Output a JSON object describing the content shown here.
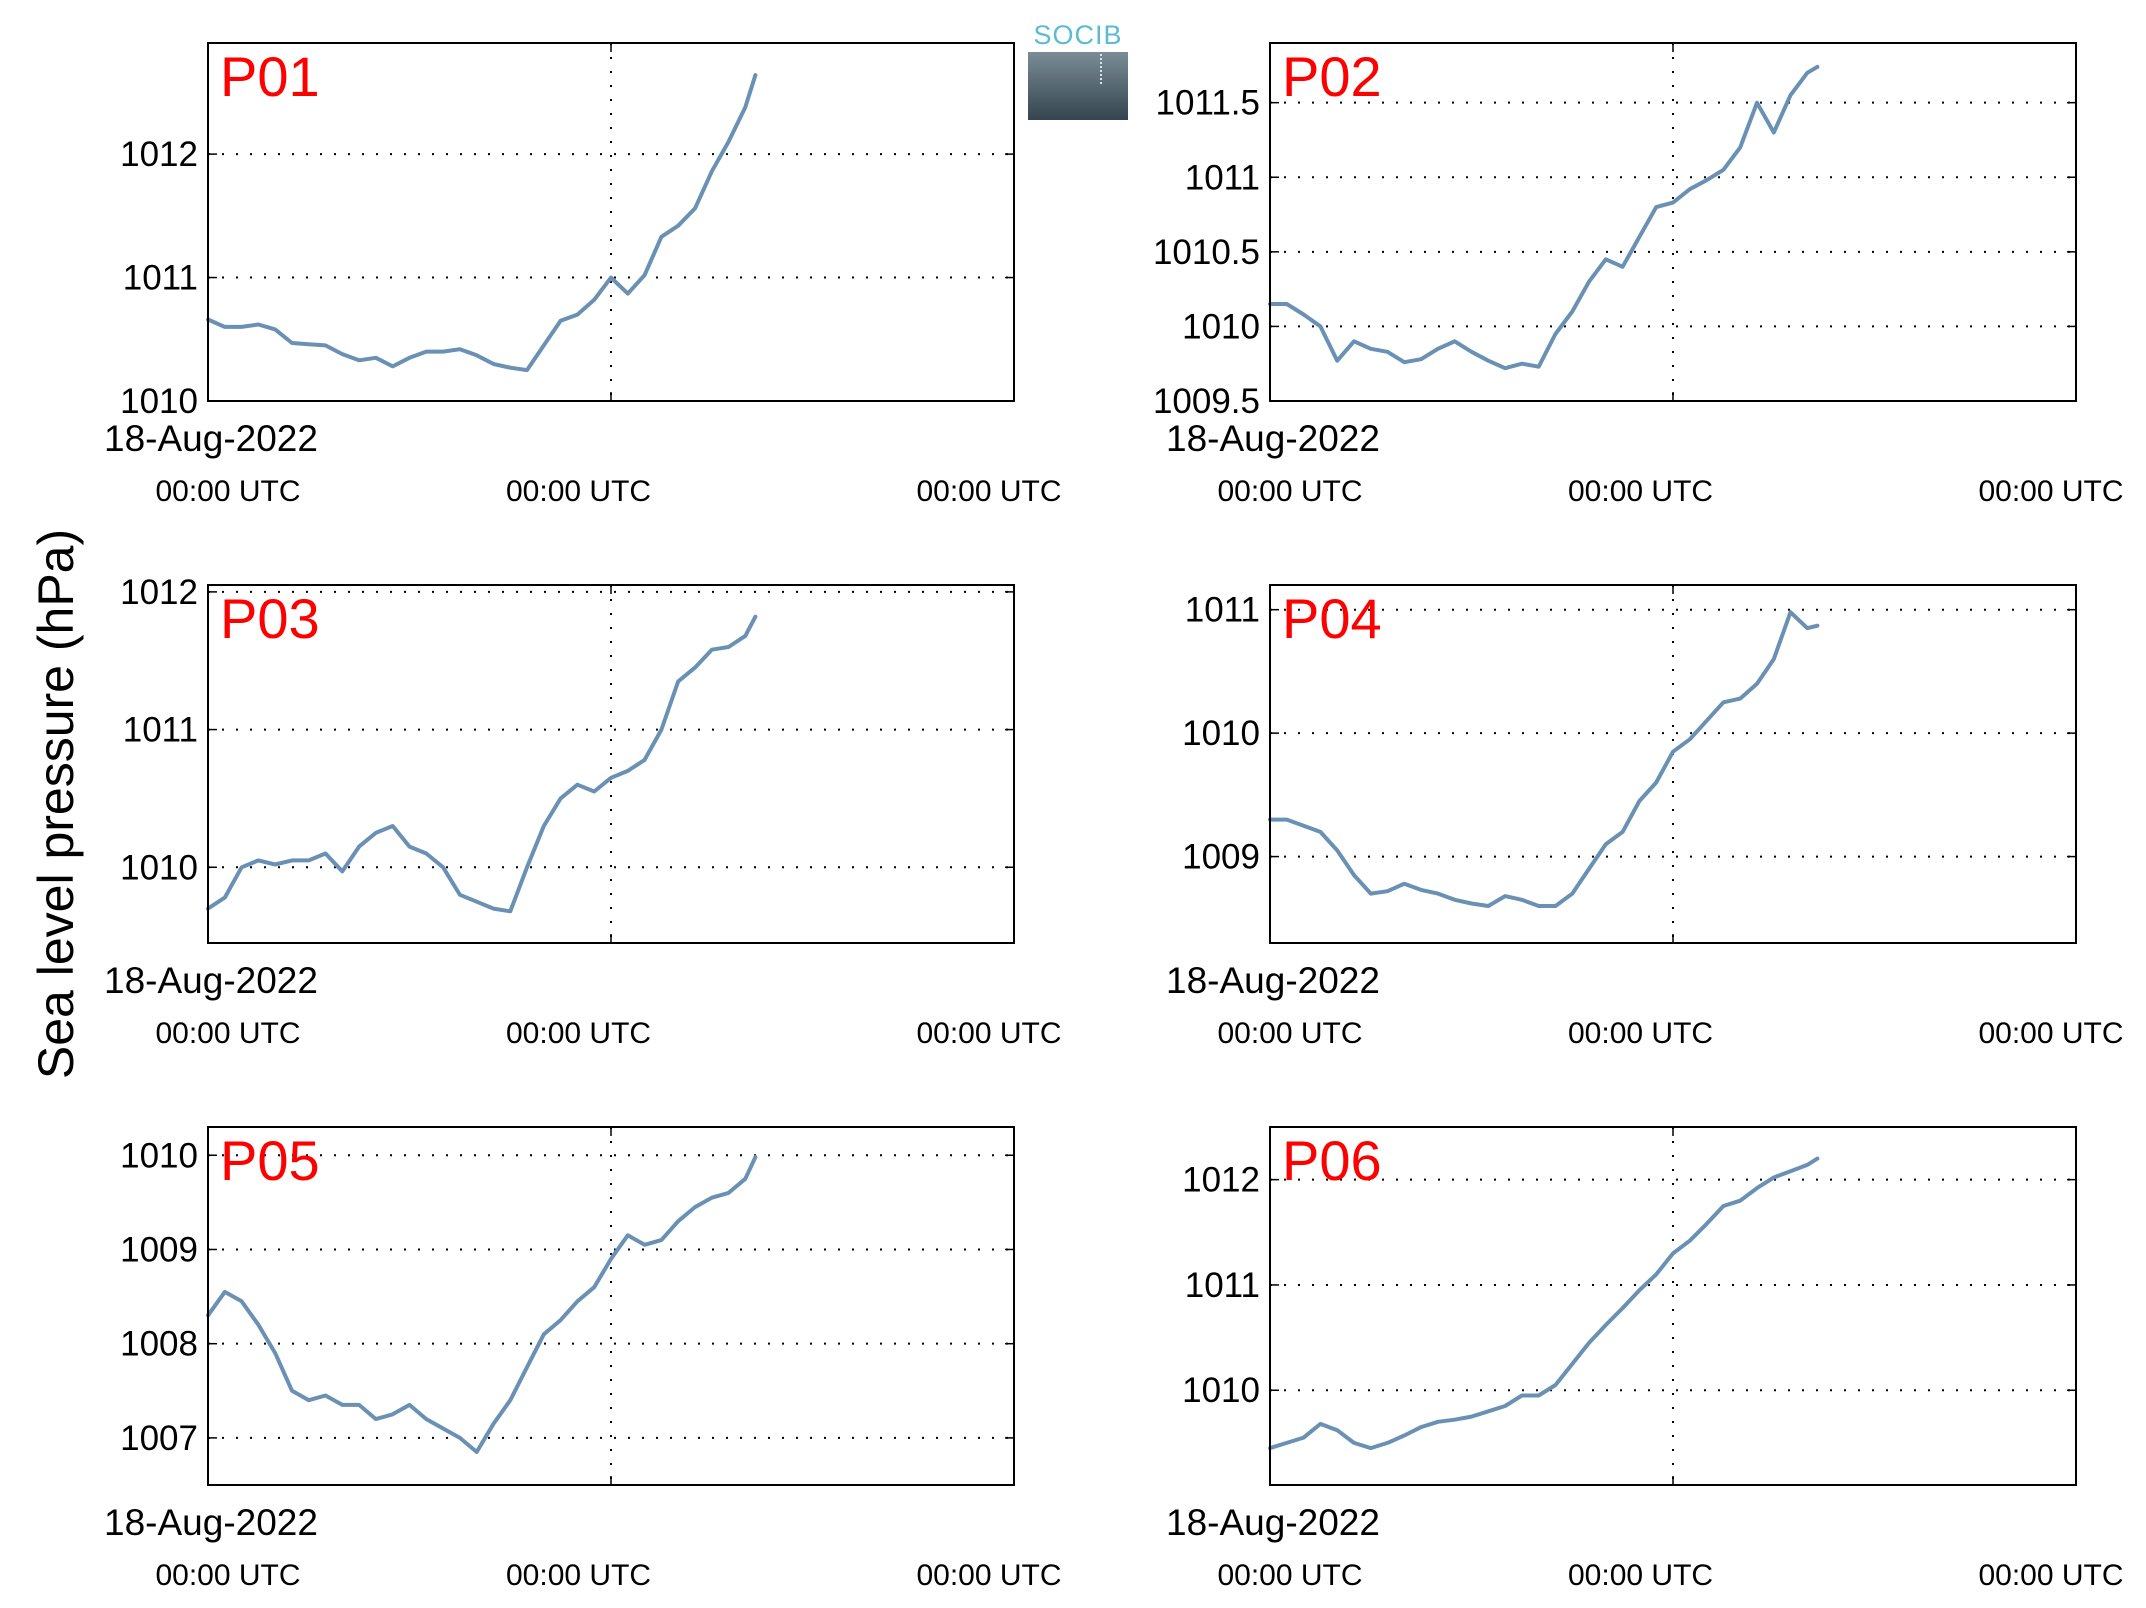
{
  "figure": {
    "ylabel": "Sea level pressure (hPa)",
    "logo_text": "SOCIB",
    "date_label": "18-Aug-2022",
    "xtick_labels": [
      "00:00 UTC",
      "00:00 UTC",
      "00:00 UTC"
    ],
    "line_color": "#6a91b3",
    "panel_label_color": "#ff0000"
  },
  "chart_data": [
    {
      "type": "line",
      "panel_label": "P01",
      "ylim": [
        1010,
        1012.9
      ],
      "yticks": [
        1010,
        1011,
        1012
      ],
      "ytick_labels": [
        "1010",
        "1011",
        "1012"
      ],
      "xlim": [
        0,
        48
      ],
      "grid": true,
      "x": [
        0,
        1,
        2,
        3,
        4,
        5,
        6,
        7,
        8,
        9,
        10,
        11,
        12,
        13,
        14,
        15,
        16,
        17,
        18,
        19,
        20,
        21,
        22,
        23,
        24,
        25,
        26,
        27,
        28,
        29,
        30,
        31,
        32,
        32.6
      ],
      "values": [
        1010.66,
        1010.6,
        1010.6,
        1010.62,
        1010.58,
        1010.47,
        1010.46,
        1010.45,
        1010.38,
        1010.33,
        1010.35,
        1010.28,
        1010.35,
        1010.4,
        1010.4,
        1010.42,
        1010.37,
        1010.3,
        1010.27,
        1010.25,
        1010.45,
        1010.65,
        1010.7,
        1010.82,
        1011.0,
        1010.87,
        1011.02,
        1011.33,
        1011.42,
        1011.56,
        1011.86,
        1012.1,
        1012.38,
        1012.64
      ]
    },
    {
      "type": "line",
      "panel_label": "P02",
      "ylim": [
        1009.5,
        1011.9
      ],
      "yticks": [
        1009.5,
        1010,
        1010.5,
        1011,
        1011.5
      ],
      "ytick_labels": [
        "1009.5",
        "1010",
        "1010.5",
        "1011",
        "1011.5"
      ],
      "xlim": [
        0,
        48
      ],
      "grid": true,
      "x": [
        0,
        1,
        2,
        3,
        4,
        5,
        6,
        7,
        8,
        9,
        10,
        11,
        12,
        13,
        14,
        15,
        16,
        17,
        18,
        19,
        20,
        21,
        22,
        23,
        24,
        25,
        26,
        27,
        28,
        29,
        30,
        31,
        32,
        32.6
      ],
      "values": [
        1010.15,
        1010.15,
        1010.08,
        1010.0,
        1009.77,
        1009.9,
        1009.85,
        1009.83,
        1009.76,
        1009.78,
        1009.85,
        1009.9,
        1009.83,
        1009.77,
        1009.72,
        1009.75,
        1009.73,
        1009.95,
        1010.1,
        1010.3,
        1010.45,
        1010.4,
        1010.6,
        1010.8,
        1010.83,
        1010.92,
        1010.98,
        1011.05,
        1011.2,
        1011.5,
        1011.3,
        1011.55,
        1011.7,
        1011.74
      ]
    },
    {
      "type": "line",
      "panel_label": "P03",
      "ylim": [
        1009.45,
        1012.05
      ],
      "yticks": [
        1010,
        1011,
        1012
      ],
      "ytick_labels": [
        "1010",
        "1011",
        "1012"
      ],
      "xlim": [
        0,
        48
      ],
      "grid": true,
      "x": [
        0,
        1,
        2,
        3,
        4,
        5,
        6,
        7,
        8,
        9,
        10,
        11,
        12,
        13,
        14,
        15,
        16,
        17,
        18,
        19,
        20,
        21,
        22,
        23,
        24,
        25,
        26,
        27,
        28,
        29,
        30,
        31,
        32,
        32.6
      ],
      "values": [
        1009.7,
        1009.78,
        1010.0,
        1010.05,
        1010.02,
        1010.05,
        1010.05,
        1010.1,
        1009.97,
        1010.15,
        1010.25,
        1010.3,
        1010.15,
        1010.1,
        1010.0,
        1009.8,
        1009.75,
        1009.7,
        1009.68,
        1010.0,
        1010.3,
        1010.5,
        1010.6,
        1010.55,
        1010.65,
        1010.7,
        1010.78,
        1011.0,
        1011.35,
        1011.45,
        1011.58,
        1011.6,
        1011.68,
        1011.82
      ]
    },
    {
      "type": "line",
      "panel_label": "P04",
      "ylim": [
        1008.3,
        1011.2
      ],
      "yticks": [
        1009,
        1010,
        1011
      ],
      "ytick_labels": [
        "1009",
        "1010",
        "1011"
      ],
      "xlim": [
        0,
        48
      ],
      "grid": true,
      "x": [
        0,
        1,
        2,
        3,
        4,
        5,
        6,
        7,
        8,
        9,
        10,
        11,
        12,
        13,
        14,
        15,
        16,
        17,
        18,
        19,
        20,
        21,
        22,
        23,
        24,
        25,
        26,
        27,
        28,
        29,
        30,
        31,
        32,
        32.6
      ],
      "values": [
        1009.3,
        1009.3,
        1009.25,
        1009.2,
        1009.05,
        1008.85,
        1008.7,
        1008.72,
        1008.78,
        1008.73,
        1008.7,
        1008.65,
        1008.62,
        1008.6,
        1008.68,
        1008.65,
        1008.6,
        1008.6,
        1008.7,
        1008.9,
        1009.1,
        1009.2,
        1009.45,
        1009.6,
        1009.85,
        1009.95,
        1010.1,
        1010.25,
        1010.28,
        1010.4,
        1010.6,
        1010.98,
        1010.85,
        1010.87
      ]
    },
    {
      "type": "line",
      "panel_label": "P05",
      "ylim": [
        1006.5,
        1010.3
      ],
      "yticks": [
        1007,
        1008,
        1009,
        1010
      ],
      "ytick_labels": [
        "1007",
        "1008",
        "1009",
        "1010"
      ],
      "xlim": [
        0,
        48
      ],
      "grid": true,
      "x": [
        0,
        1,
        2,
        3,
        4,
        5,
        6,
        7,
        8,
        9,
        10,
        11,
        12,
        13,
        14,
        15,
        16,
        17,
        18,
        19,
        20,
        21,
        22,
        23,
        24,
        25,
        26,
        27,
        28,
        29,
        30,
        31,
        32,
        32.6
      ],
      "values": [
        1008.3,
        1008.55,
        1008.45,
        1008.2,
        1007.9,
        1007.5,
        1007.4,
        1007.45,
        1007.35,
        1007.35,
        1007.2,
        1007.25,
        1007.35,
        1007.2,
        1007.1,
        1007.0,
        1006.85,
        1007.15,
        1007.4,
        1007.75,
        1008.1,
        1008.25,
        1008.45,
        1008.6,
        1008.9,
        1009.15,
        1009.05,
        1009.1,
        1009.3,
        1009.45,
        1009.55,
        1009.6,
        1009.75,
        1009.98
      ]
    },
    {
      "type": "line",
      "panel_label": "P06",
      "ylim": [
        1009.1,
        1012.5
      ],
      "yticks": [
        1010,
        1011,
        1012
      ],
      "ytick_labels": [
        "1010",
        "1011",
        "1012"
      ],
      "xlim": [
        0,
        48
      ],
      "grid": true,
      "x": [
        0,
        1,
        2,
        3,
        4,
        5,
        6,
        7,
        8,
        9,
        10,
        11,
        12,
        13,
        14,
        15,
        16,
        17,
        18,
        19,
        20,
        21,
        22,
        23,
        24,
        25,
        26,
        27,
        28,
        29,
        30,
        31,
        32,
        32.6
      ],
      "values": [
        1009.45,
        1009.5,
        1009.55,
        1009.68,
        1009.62,
        1009.5,
        1009.45,
        1009.5,
        1009.57,
        1009.65,
        1009.7,
        1009.72,
        1009.75,
        1009.8,
        1009.85,
        1009.95,
        1009.95,
        1010.05,
        1010.25,
        1010.45,
        1010.62,
        1010.78,
        1010.95,
        1011.1,
        1011.3,
        1011.42,
        1011.58,
        1011.75,
        1011.8,
        1011.92,
        1012.02,
        1012.08,
        1012.14,
        1012.2
      ]
    }
  ]
}
